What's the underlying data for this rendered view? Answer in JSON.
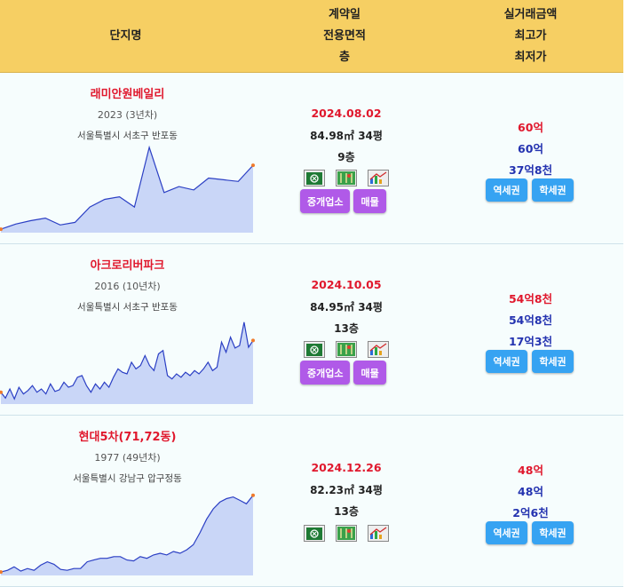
{
  "header": {
    "col1": "단지명",
    "col2_lines": [
      "계약일",
      "전용면적",
      "층"
    ],
    "col3_lines": [
      "실거래금액",
      "최고가",
      "최저가"
    ]
  },
  "rows": [
    {
      "name": "래미안원베일리",
      "year": "2023 (3년차)",
      "address": "서울특별시 서초구 반포동",
      "date": "2024.08.02",
      "area": "84.98㎡ 34평",
      "floor": "9층",
      "price": "60억",
      "max": "60억",
      "min": "37억8천",
      "buttons": [
        "중개업소",
        "매물"
      ],
      "map_buttons": [
        "역세권",
        "학세권"
      ],
      "icons": [
        "excel-icon",
        "map-icon",
        "chart-icon"
      ]
    },
    {
      "name": "아크로리버파크",
      "year": "2016 (10년차)",
      "address": "서울특별시 서초구 반포동",
      "date": "2024.10.05",
      "area": "84.95㎡ 34평",
      "floor": "13층",
      "price": "54억8천",
      "max": "54억8천",
      "min": "17억3천",
      "buttons": [
        "중개업소",
        "매물"
      ],
      "map_buttons": [
        "역세권",
        "학세권"
      ],
      "icons": [
        "excel-icon",
        "map-icon",
        "chart-icon"
      ]
    },
    {
      "name": "현대5차(71,72동)",
      "year": "1977 (49년차)",
      "address": "서울특별시 강남구 압구정동",
      "date": "2024.12.26",
      "area": "82.23㎡ 34평",
      "floor": "13층",
      "price": "48억",
      "max": "48억",
      "min": "2억6천",
      "buttons": [],
      "map_buttons": [
        "역세권",
        "학세권"
      ],
      "icons": [
        "excel-icon",
        "map-icon",
        "chart-icon"
      ]
    }
  ],
  "colors": {
    "header_bg": "#f6cf63",
    "name_red": "#e0182d",
    "price_blue": "#2433b0",
    "purple_button": "#b05ae8",
    "blue_button": "#36a3f2",
    "chart_line": "#2b3fc4",
    "chart_fill": "#c9d6f7"
  },
  "chart_data": [
    {
      "type": "area",
      "title": "",
      "x": [
        0,
        1,
        2,
        3,
        4,
        5,
        6,
        7,
        8,
        9,
        10,
        11,
        12,
        13,
        14,
        15,
        16,
        17
      ],
      "values": [
        0.02,
        0.08,
        0.12,
        0.15,
        0.07,
        0.1,
        0.28,
        0.37,
        0.4,
        0.28,
        0.98,
        0.45,
        0.52,
        0.48,
        0.62,
        0.6,
        0.58,
        0.77
      ]
    },
    {
      "type": "area",
      "title": "",
      "x": [
        0,
        1,
        2,
        3,
        4,
        5,
        6,
        7,
        8,
        9,
        10,
        11,
        12,
        13,
        14,
        15,
        16,
        17,
        18,
        19,
        20,
        21,
        22,
        23,
        24,
        25,
        26,
        27,
        28,
        29,
        30,
        31,
        32,
        33,
        34,
        35,
        36,
        37,
        38,
        39,
        40,
        41,
        42,
        43,
        44,
        45,
        46,
        47,
        48,
        49,
        50,
        51,
        52,
        53,
        54,
        55,
        56
      ],
      "values": [
        0.12,
        0.05,
        0.16,
        0.04,
        0.18,
        0.1,
        0.14,
        0.2,
        0.12,
        0.16,
        0.1,
        0.22,
        0.13,
        0.15,
        0.24,
        0.18,
        0.2,
        0.3,
        0.32,
        0.2,
        0.12,
        0.22,
        0.16,
        0.24,
        0.18,
        0.3,
        0.4,
        0.36,
        0.34,
        0.48,
        0.4,
        0.44,
        0.56,
        0.44,
        0.38,
        0.58,
        0.62,
        0.32,
        0.28,
        0.34,
        0.3,
        0.36,
        0.32,
        0.38,
        0.34,
        0.4,
        0.48,
        0.38,
        0.42,
        0.72,
        0.6,
        0.78,
        0.65,
        0.68,
        0.96,
        0.66,
        0.74
      ]
    },
    {
      "type": "area",
      "title": "",
      "x": [
        0,
        1,
        2,
        3,
        4,
        5,
        6,
        7,
        8,
        9,
        10,
        11,
        12,
        13,
        14,
        15,
        16,
        17,
        18,
        19,
        20,
        21,
        22,
        23,
        24,
        25,
        26,
        27,
        28,
        29,
        30,
        31,
        32,
        33,
        34,
        35,
        36,
        37,
        38
      ],
      "values": [
        0.02,
        0.04,
        0.08,
        0.03,
        0.06,
        0.04,
        0.1,
        0.14,
        0.11,
        0.05,
        0.04,
        0.06,
        0.06,
        0.14,
        0.16,
        0.18,
        0.18,
        0.2,
        0.2,
        0.16,
        0.15,
        0.2,
        0.18,
        0.22,
        0.24,
        0.22,
        0.26,
        0.24,
        0.28,
        0.34,
        0.48,
        0.64,
        0.76,
        0.84,
        0.88,
        0.9,
        0.86,
        0.82,
        0.92
      ]
    }
  ]
}
